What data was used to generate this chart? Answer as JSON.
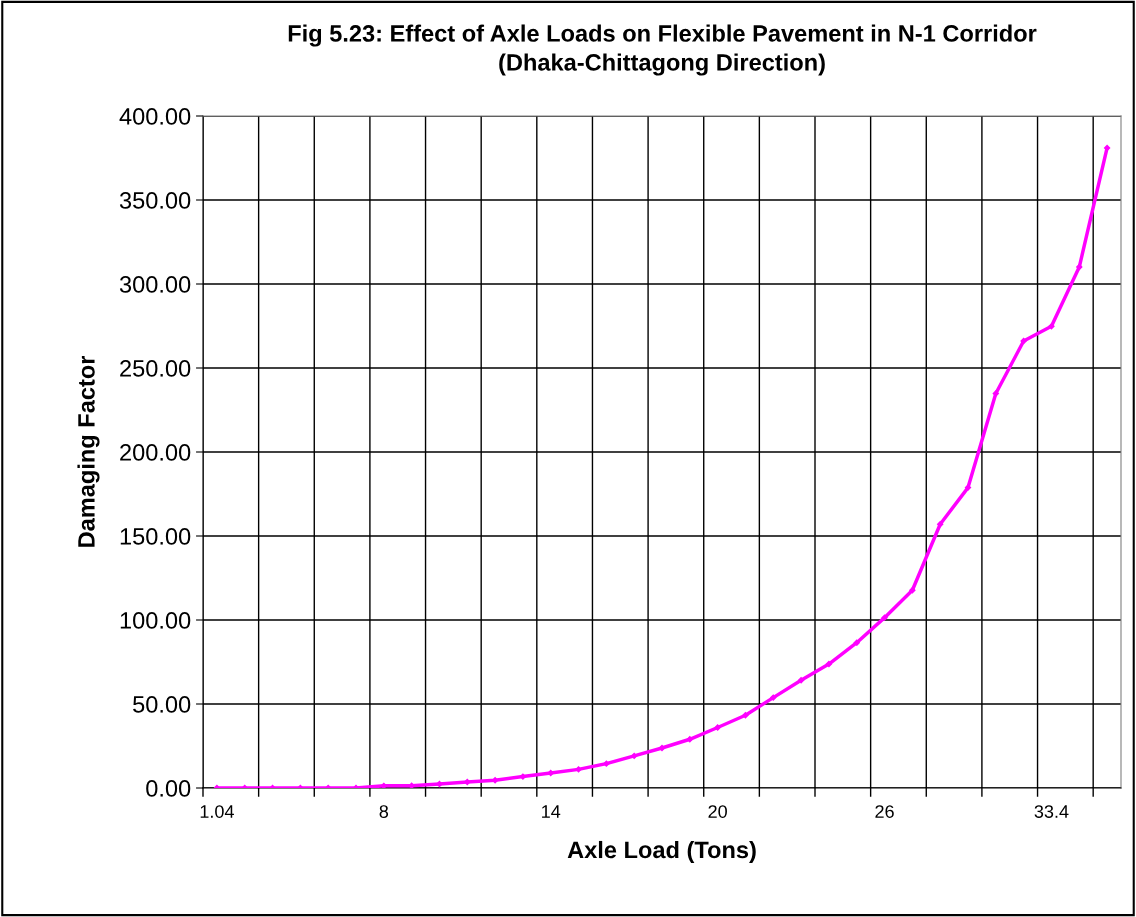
{
  "chart_data": {
    "type": "line",
    "title": "Fig 5.23: Effect of Axle Loads on Flexible Pavement in N-1 Corridor\n(Dhaka-Chittagong Direction)",
    "xlabel": "Axle Load (Tons)",
    "ylabel": "Damaging Factor",
    "categories": [
      "1.04",
      null,
      null,
      null,
      null,
      null,
      "8",
      null,
      null,
      null,
      null,
      null,
      "14",
      null,
      null,
      null,
      null,
      null,
      "20",
      null,
      null,
      null,
      null,
      null,
      "26",
      null,
      null,
      null,
      null,
      null,
      "33.4",
      null,
      null
    ],
    "series": [
      {
        "color": "#ff00ff",
        "values": [
          0,
          0,
          0,
          0,
          0,
          0,
          1.3,
          1.4,
          2.4,
          3.6,
          4.6,
          6.8,
          8.9,
          11.1,
          14.5,
          19.1,
          23.8,
          29.0,
          36.0,
          43.3,
          53.8,
          64.1,
          73.8,
          86.5,
          101.4,
          117.7,
          157,
          178.8,
          234.8,
          266.1,
          274.8,
          310.1,
          381
        ]
      }
    ],
    "ylim": [
      0,
      400
    ],
    "yticks": [
      {
        "value": 0,
        "label": "0.00"
      },
      {
        "value": 50,
        "label": "50.00"
      },
      {
        "value": 100,
        "label": "100.00"
      },
      {
        "value": 150,
        "label": "150.00"
      },
      {
        "value": 200,
        "label": "200.00"
      },
      {
        "value": 250,
        "label": "250.00"
      },
      {
        "value": 300,
        "label": "300.00"
      },
      {
        "value": 350,
        "label": "350.00"
      },
      {
        "value": 400,
        "label": "400.00"
      }
    ],
    "grid": true,
    "marker": "diamond",
    "line_style": "solid"
  }
}
